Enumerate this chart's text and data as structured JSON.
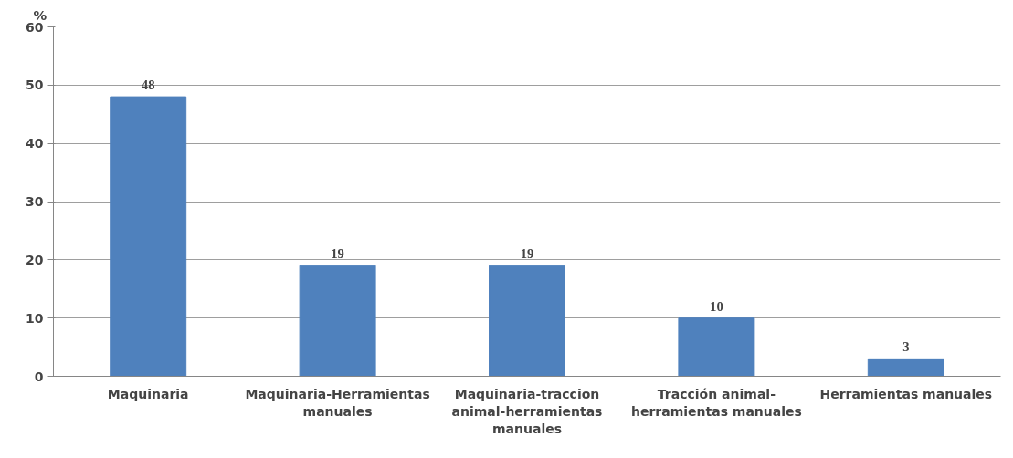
{
  "chart_data": {
    "type": "bar",
    "ylabel": "%",
    "categories": [
      "Maquinaria",
      "Maquinaria-Herramientas\nmanuales",
      "Maquinaria-traccion\nanimal-herramientas\nmanuales",
      "Tracción animal-\nherramientas manuales",
      "Herramientas manuales"
    ],
    "values": [
      48,
      19,
      19,
      10,
      3
    ],
    "color": "#4f81bd",
    "ylim": [
      0,
      60
    ],
    "yticks": [
      0,
      10,
      20,
      30,
      40,
      50,
      60
    ],
    "grid": "y",
    "data_labels": true
  }
}
